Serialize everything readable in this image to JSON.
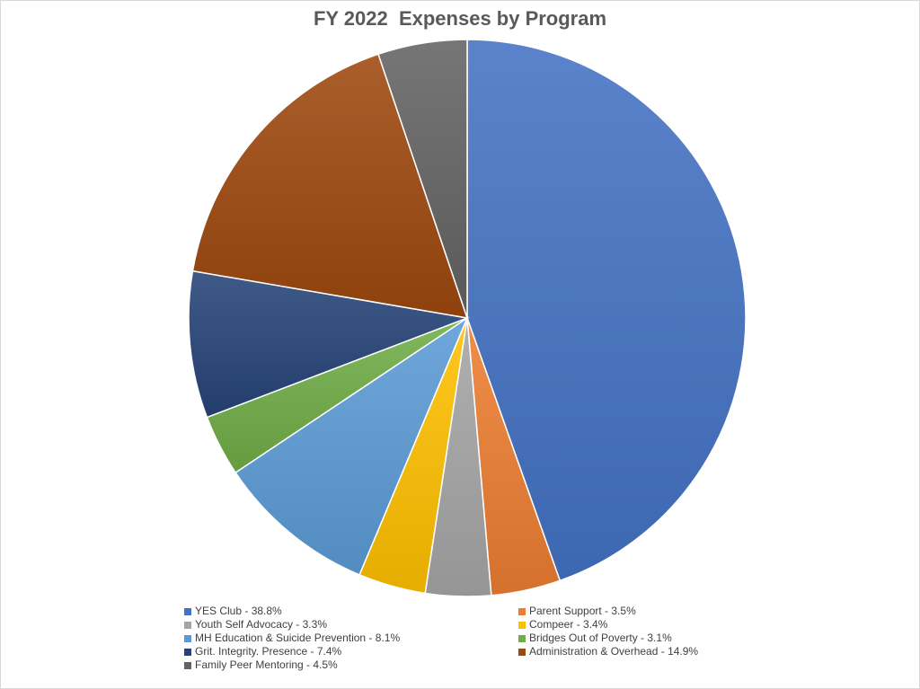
{
  "chart_data": {
    "type": "pie",
    "title": "FY 2022  Expenses by Program",
    "legend_position": "bottom",
    "slices": [
      {
        "label": "YES Club - 38.8%",
        "value": 38.8,
        "color": "#4472C4"
      },
      {
        "label": "Parent Support - 3.5%",
        "value": 3.5,
        "color": "#ED7D31"
      },
      {
        "label": "Youth Self Advocacy - 3.3%",
        "value": 3.3,
        "color": "#A5A5A5"
      },
      {
        "label": "Compeer -  3.4%",
        "value": 3.4,
        "color": "#FFC000"
      },
      {
        "label": "MH Education & Suicide Prevention - 8.1%",
        "value": 8.1,
        "color": "#5B9BD5"
      },
      {
        "label": "Bridges Out of Poverty - 3.1%",
        "value": 3.1,
        "color": "#70AD47"
      },
      {
        "label": "Grit. Integrity. Presence - 7.4%",
        "value": 7.4,
        "color": "#264478"
      },
      {
        "label": "Administration & Overhead - 14.9%",
        "value": 14.9,
        "color": "#9E480E"
      },
      {
        "label": "Family Peer Mentoring - 4.5%",
        "value": 4.5,
        "color": "#636363"
      }
    ]
  }
}
